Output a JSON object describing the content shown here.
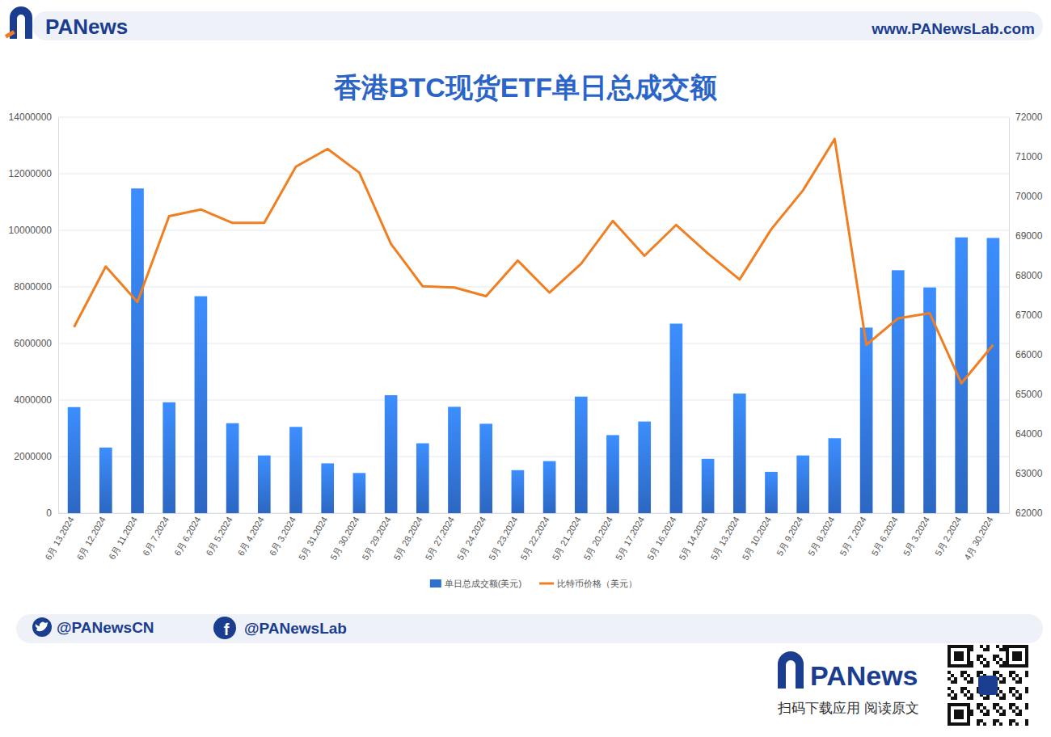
{
  "chart_data": {
    "type": "bar",
    "title": "香港BTC现货ETF单日总成交额",
    "categories": [
      "6月 13,2024",
      "6月 12,2024",
      "6月 11,2024",
      "6月 7,2024",
      "6月 6,2024",
      "6月 5,2024",
      "6月 4,2024",
      "6月 3,2024",
      "5月 31,2024",
      "5月 30,2024",
      "5月 29,2024",
      "5月 28,2024",
      "5月 27,2024",
      "5月 24,2024",
      "5月 23,2024",
      "5月 22,2024",
      "5月 21,2024",
      "5月 20,2024",
      "5月 17,2024",
      "5月 16,2024",
      "5月 14,2024",
      "5月 13,2024",
      "5月 10,2024",
      "5月 9,2024",
      "5月 8,2024",
      "5月 7,2024",
      "5月 6,2024",
      "5月 3,2024",
      "5月 2,2024",
      "4月 30,2024"
    ],
    "series": [
      {
        "name": "单日总成交额(美元)",
        "type": "bar",
        "color": "#2f6fd0",
        "values": [
          3750000,
          2320000,
          11480000,
          3920000,
          7670000,
          3180000,
          2040000,
          3050000,
          1760000,
          1420000,
          4170000,
          2470000,
          3760000,
          3160000,
          1520000,
          1840000,
          4120000,
          2760000,
          3240000,
          6700000,
          1920000,
          4230000,
          1460000,
          2040000,
          2650000,
          6560000,
          8590000,
          7980000,
          9750000,
          9730000
        ]
      },
      {
        "name": "比特币价格（美元）",
        "type": "line",
        "color": "#f07f22",
        "axis": "y2",
        "values": [
          66700,
          68230,
          67330,
          69500,
          69670,
          69330,
          69330,
          70750,
          71200,
          70600,
          68800,
          67730,
          67700,
          67480,
          68380,
          67570,
          68300,
          69380,
          68500,
          69280,
          68560,
          67900,
          69170,
          70150,
          71450,
          66250,
          66920,
          67050,
          65280,
          66250
        ]
      }
    ],
    "ylim": [
      0,
      14000000
    ],
    "yticks": [
      0,
      2000000,
      4000000,
      6000000,
      8000000,
      10000000,
      12000000,
      14000000
    ],
    "y2lim": [
      62000,
      72000
    ],
    "y2ticks": [
      62000,
      63000,
      64000,
      65000,
      66000,
      67000,
      68000,
      69000,
      70000,
      71000,
      72000
    ],
    "grid": true,
    "legend": "bottom"
  },
  "page": {
    "brand": "PANews",
    "url": "www.PANewsLab.com",
    "twitter": "@PANewsCN",
    "facebook": "@PANewsLab",
    "footer_text": "扫码下载应用 阅读原文"
  }
}
